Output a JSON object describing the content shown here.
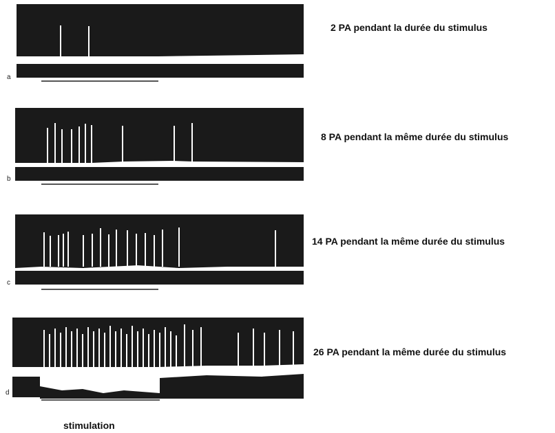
{
  "figure": {
    "panels": [
      {
        "letter": "a",
        "caption": "2 PA pendant la durée  du stimulus",
        "spikes": 2
      },
      {
        "letter": "b",
        "caption": "8 PA  pendant la même durée du stimulus",
        "spikes": 8
      },
      {
        "letter": "c",
        "caption": "14 PA pendant la même durée du stimulus",
        "spikes": 14
      },
      {
        "letter": "d",
        "caption": "26 PA pendant la même durée du   stimulus",
        "spikes": 26
      }
    ],
    "stimulation_label": "stimulation"
  }
}
